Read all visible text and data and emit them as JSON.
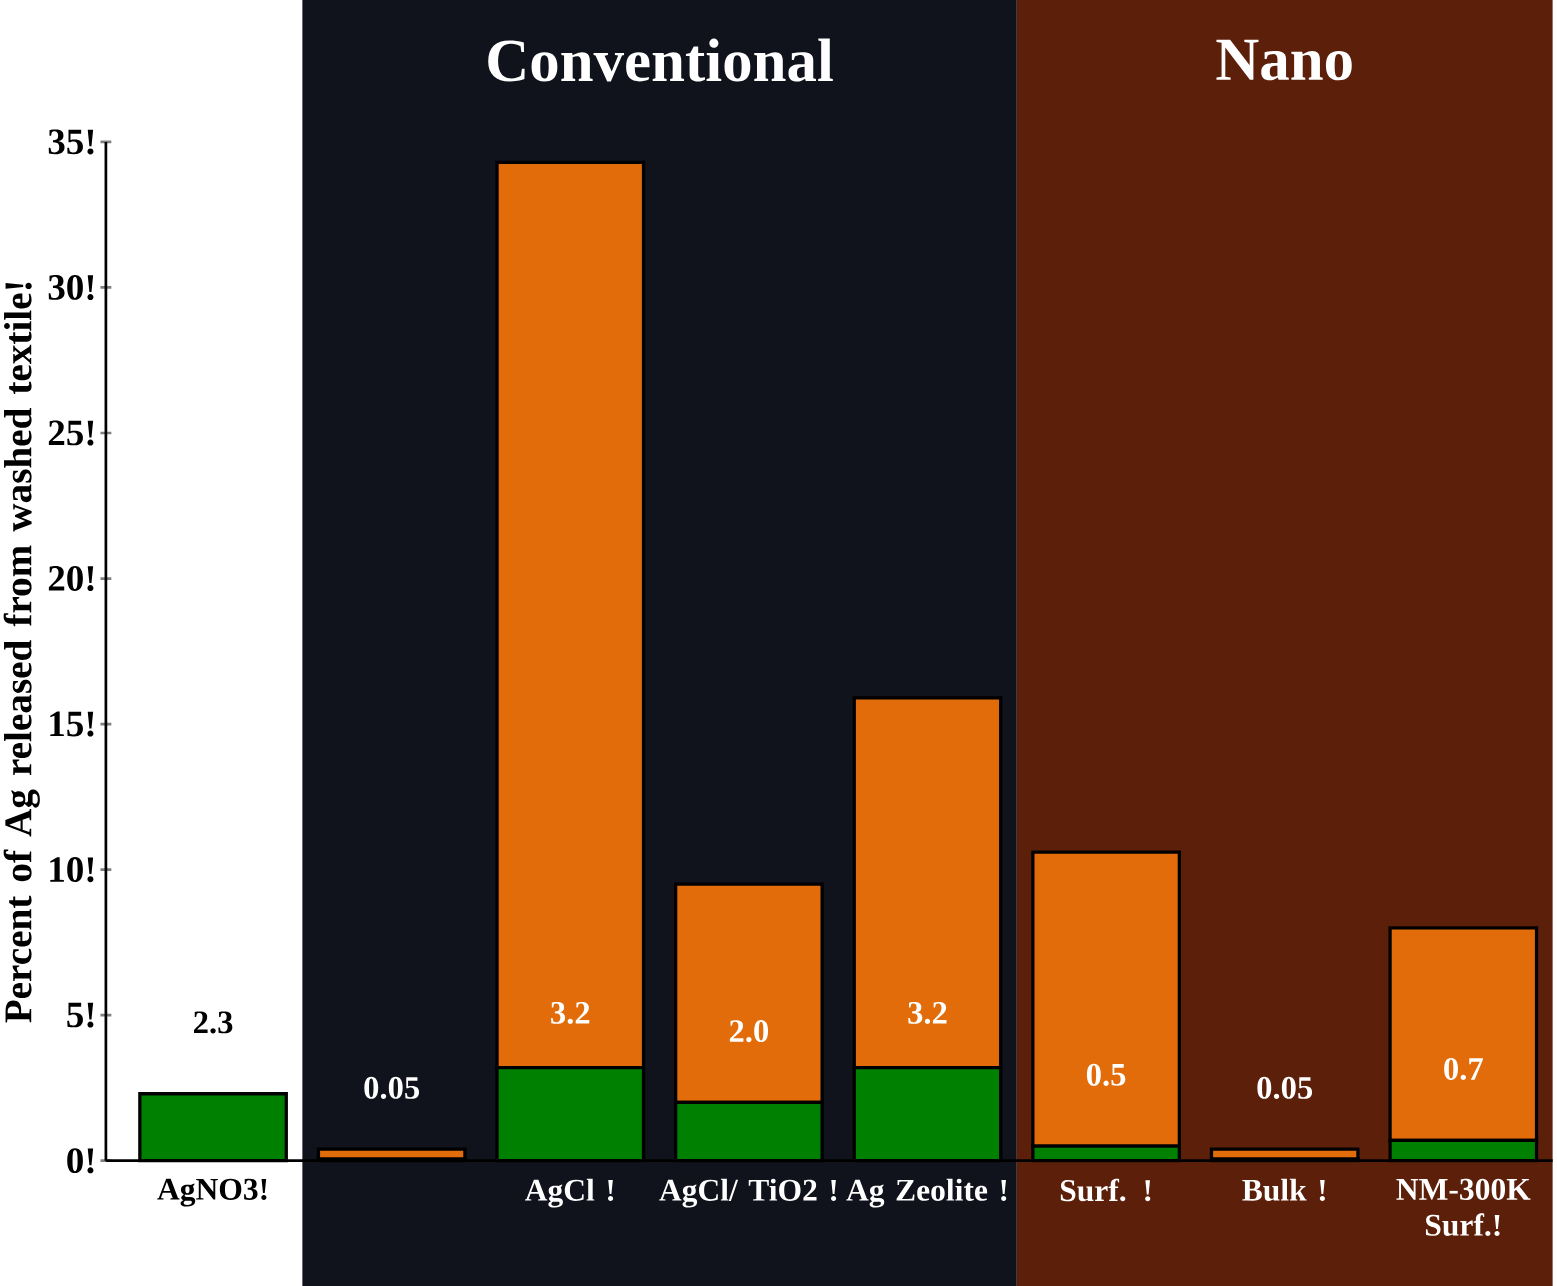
{
  "chart_data": {
    "type": "bar",
    "stacked": true,
    "ylabel": "Percent of Ag released from washed textile!",
    "categories": [
      "AgNO3!",
      null,
      "AgCl !",
      "AgCl/ TiO2 !",
      "Ag Zeolite !",
      "Surf. !",
      "Bulk  !",
      "NM-300K Surf.!"
    ],
    "series": [
      {
        "color": "#008000",
        "values": [
          2.3,
          0.05,
          3.2,
          2.0,
          3.2,
          0.5,
          0.05,
          0.7
        ],
        "value_labels": [
          "2.3",
          "0.05",
          "3.2",
          "2.0",
          "3.2",
          "0.5",
          "0.05",
          "0.7"
        ]
      },
      {
        "color": "#e36c0a",
        "values": [
          0,
          0.35,
          31.1,
          7.5,
          12.7,
          10.1,
          0.35,
          7.3
        ]
      }
    ],
    "ylim": [
      0,
      35
    ],
    "yticks": [
      {
        "value": 0,
        "label": "0!"
      },
      {
        "value": 5,
        "label": "5!"
      },
      {
        "value": 10,
        "label": "10!"
      },
      {
        "value": 15,
        "label": "15!"
      },
      {
        "value": 20,
        "label": "20!"
      },
      {
        "value": 25,
        "label": "25!"
      },
      {
        "value": 30,
        "label": "30!"
      },
      {
        "value": 35,
        "label": "35!"
      }
    ],
    "annotations": [
      "Conventional"
    ],
    "bands": [
      {
        "axis": "x",
        "from": "Surf. !",
        "to": "NM-300K Surf.!",
        "label": "Nano",
        "color": "#5c200a"
      }
    ]
  }
}
